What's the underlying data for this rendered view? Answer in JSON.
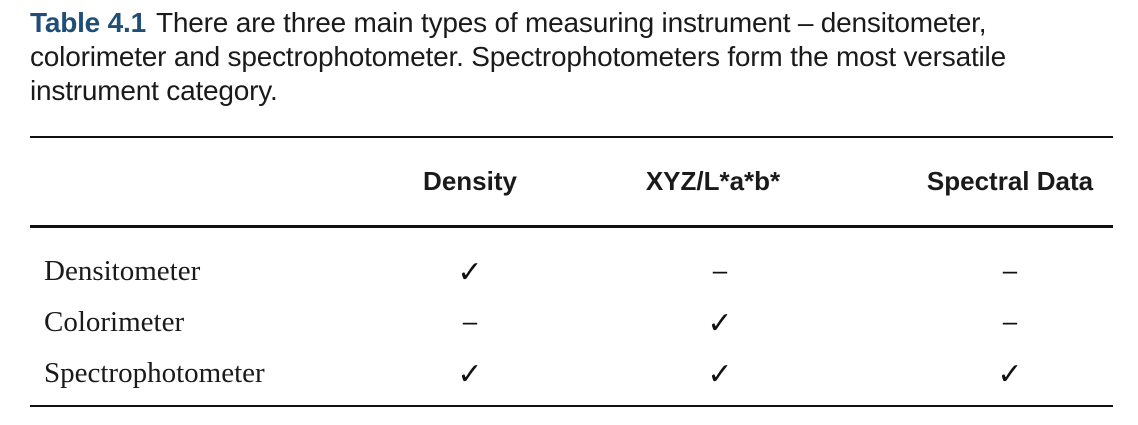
{
  "caption": {
    "label": "Table 4.1",
    "text": "There are three main types of measuring instrument – densitometer, colorimeter and spectrophotometer. Spectrophotometers form the most versatile instrument category."
  },
  "table": {
    "columns": [
      "Density",
      "XYZ/L*a*b*",
      "Spectral Data"
    ],
    "rows": [
      {
        "label": "Densitometer",
        "cells": [
          "✓",
          "–",
          "–"
        ]
      },
      {
        "label": "Colorimeter",
        "cells": [
          "–",
          "✓",
          "–"
        ]
      },
      {
        "label": "Spectrophotometer",
        "cells": [
          "✓",
          "✓",
          "✓"
        ]
      }
    ]
  },
  "colors": {
    "caption_label": "#1f4e79",
    "text": "#1a1a1a",
    "rules": "#111111"
  }
}
